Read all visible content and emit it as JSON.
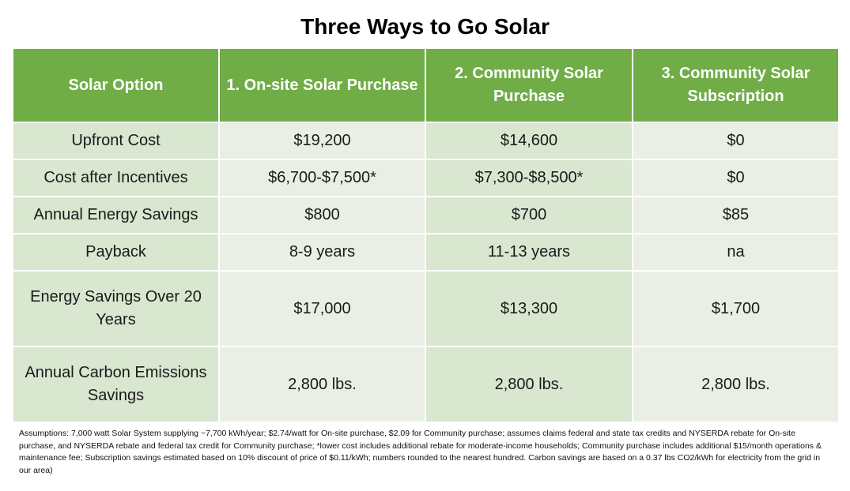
{
  "title": "Three Ways to Go Solar",
  "table": {
    "headers": [
      "Solar Option",
      "1. On-site Solar Purchase",
      "2. Community Solar Purchase",
      "3. Community Solar Subscription"
    ],
    "rows": [
      {
        "label": "Upfront Cost",
        "values": [
          "$19,200",
          "$14,600",
          "$0"
        ]
      },
      {
        "label": "Cost after Incentives",
        "values": [
          "$6,700-$7,500*",
          "$7,300-$8,500*",
          "$0"
        ]
      },
      {
        "label": "Annual Energy Savings",
        "values": [
          "$800",
          "$700",
          "$85"
        ]
      },
      {
        "label": "Payback",
        "values": [
          "8-9 years",
          "11-13 years",
          "na"
        ]
      },
      {
        "label": "Energy Savings Over 20 Years",
        "values": [
          "$17,000",
          "$13,300",
          "$1,700"
        ]
      },
      {
        "label": "Annual Carbon Emissions Savings",
        "values": [
          "2,800 lbs.",
          "2,800 lbs.",
          "2,800 lbs."
        ]
      }
    ]
  },
  "assumptions": "Assumptions: 7,000 watt Solar System supplying ~7,700 kWh/year; $2.74/watt for On-site purchase, $2.09 for Community purchase; assumes claims federal and state tax credits and NYSERDA rebate for On-site purchase, and NYSERDA rebate and federal tax credit for Community purchase; *lower cost includes additional rebate for moderate-income households; Community purchase includes additional $15/month operations & maintenance fee; Subscription savings estimated based on 10% discount of price of $0.11/kWh; numbers rounded to the nearest hundred. Carbon savings are based on a 0.37 lbs CO2/kWh for electricity from the grid in our area)",
  "colors": {
    "header_green": "#70ad47",
    "label_column": "#d9e6d0",
    "light_cell": "#e9efe4"
  }
}
